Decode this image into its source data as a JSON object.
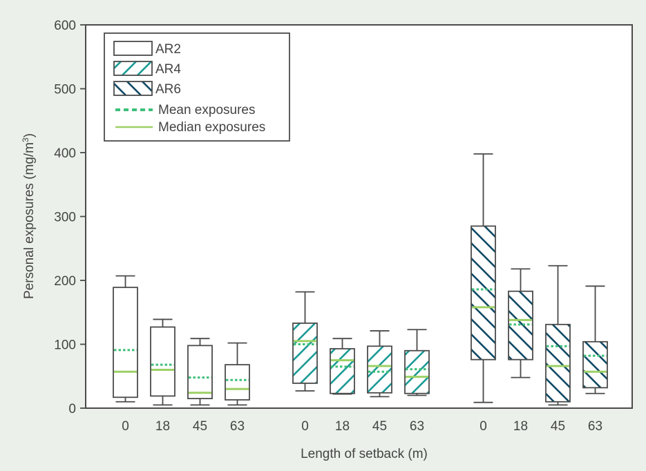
{
  "chart_data": {
    "type": "boxplot",
    "title": "",
    "xlabel": "Length of setback (m)",
    "ylabel": "Personal exposures (mg/m",
    "ylabel_superscript": "3",
    "ylabel_close": ")",
    "ylim": [
      0,
      600
    ],
    "yticks": [
      0,
      100,
      200,
      300,
      400,
      500,
      600
    ],
    "grid": false,
    "legend_position": "top-left",
    "legend": {
      "series": [
        "AR2",
        "AR4",
        "AR6"
      ],
      "mean_label": "Mean exposures",
      "median_label": "Median exposures"
    },
    "colors": {
      "background": "#ebf1ea",
      "plot_background": "#ffffff",
      "frame": "#4a4a4a",
      "box_edge": "#4a4a4a",
      "AR2": "#ffffff",
      "AR4": "#1a9a96",
      "AR6": "#114a66",
      "mean": "#3dbf7a",
      "median": "#9cd065"
    },
    "series": [
      {
        "name": "AR2",
        "pattern": "none",
        "groups": [
          {
            "setback": "0",
            "whisker_low": 10,
            "q1": 17,
            "median": 57,
            "mean": 91,
            "q3": 189,
            "whisker_high": 207
          },
          {
            "setback": "18",
            "whisker_low": 5,
            "q1": 19,
            "median": 60,
            "mean": 68,
            "q3": 127,
            "whisker_high": 139
          },
          {
            "setback": "45",
            "whisker_low": 5,
            "q1": 15,
            "median": 24,
            "mean": 48,
            "q3": 98,
            "whisker_high": 109
          },
          {
            "setback": "63",
            "whisker_low": 5,
            "q1": 13,
            "median": 30,
            "mean": 44,
            "q3": 68,
            "whisker_high": 102
          }
        ]
      },
      {
        "name": "AR4",
        "pattern": "forward-diagonal",
        "groups": [
          {
            "setback": "0",
            "whisker_low": 27,
            "q1": 39,
            "median": 105,
            "mean": 100,
            "q3": 133,
            "whisker_high": 182
          },
          {
            "setback": "18",
            "whisker_low": 22,
            "q1": 23,
            "median": 75,
            "mean": 65,
            "q3": 93,
            "whisker_high": 109
          },
          {
            "setback": "45",
            "whisker_low": 18,
            "q1": 24,
            "median": 66,
            "mean": 57,
            "q3": 97,
            "whisker_high": 121
          },
          {
            "setback": "63",
            "whisker_low": 20,
            "q1": 23,
            "median": 49,
            "mean": 61,
            "q3": 90,
            "whisker_high": 123
          }
        ]
      },
      {
        "name": "AR6",
        "pattern": "back-diagonal",
        "groups": [
          {
            "setback": "0",
            "whisker_low": 9,
            "q1": 76,
            "median": 158,
            "mean": 186,
            "q3": 285,
            "whisker_high": 398
          },
          {
            "setback": "18",
            "whisker_low": 48,
            "q1": 76,
            "median": 138,
            "mean": 131,
            "q3": 183,
            "whisker_high": 218
          },
          {
            "setback": "45",
            "whisker_low": 5,
            "q1": 10,
            "median": 66,
            "mean": 97,
            "q3": 131,
            "whisker_high": 223
          },
          {
            "setback": "63",
            "whisker_low": 23,
            "q1": 32,
            "median": 57,
            "mean": 82,
            "q3": 104,
            "whisker_high": 191
          }
        ]
      }
    ]
  }
}
